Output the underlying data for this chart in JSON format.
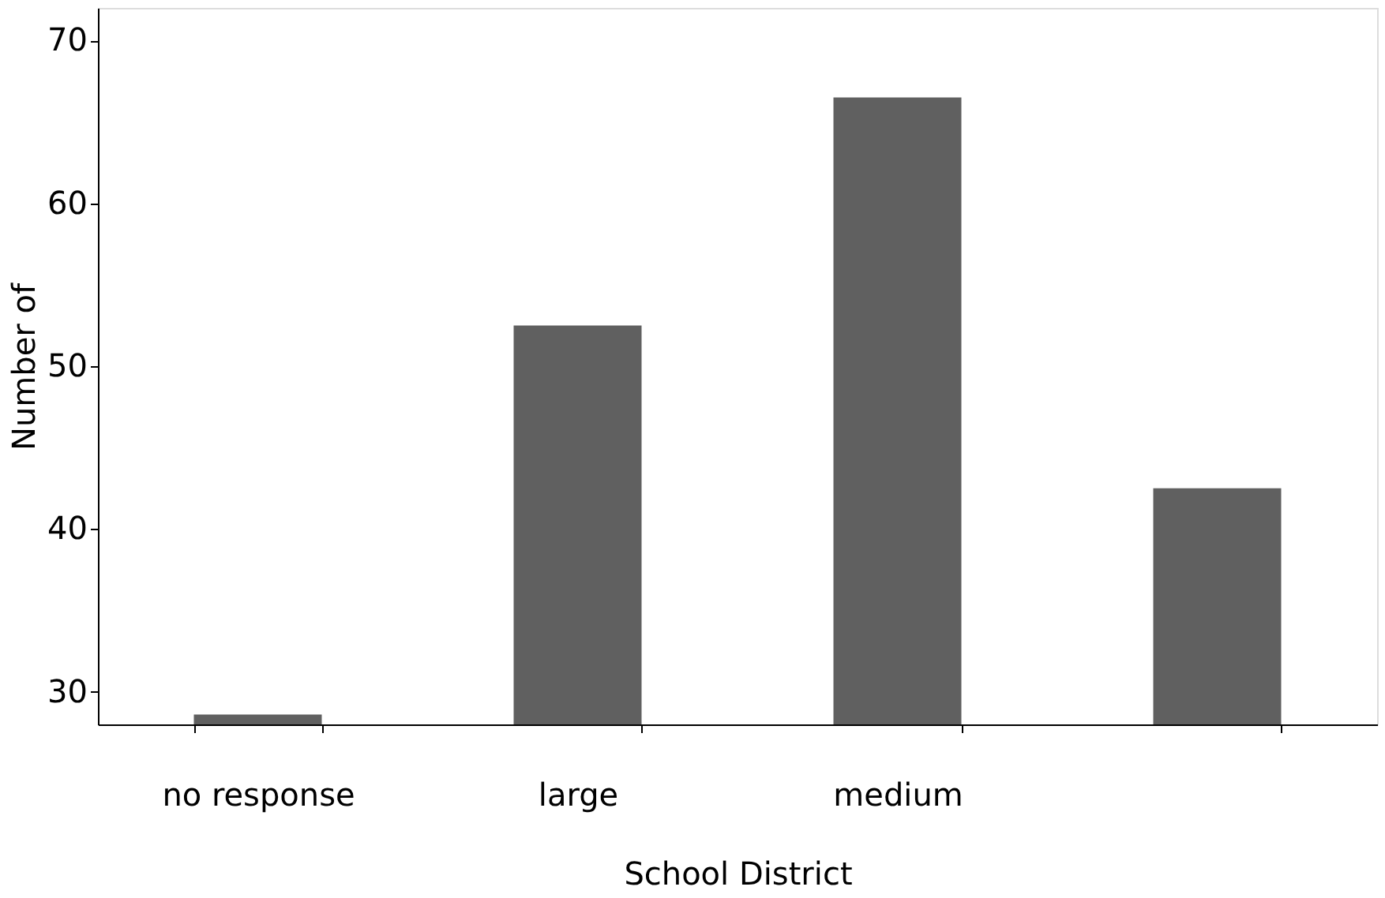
{
  "chart_data": {
    "type": "bar",
    "xlabel": "School District",
    "ylabel": "Number of",
    "categories": [
      "no response",
      "large",
      "medium",
      null
    ],
    "values": [
      28.6,
      52.5,
      66.5,
      42.5
    ],
    "color": "#606060",
    "ylim": [
      28,
      72
    ],
    "yticks": [
      30,
      40,
      50,
      60,
      70
    ],
    "grid": false
  }
}
